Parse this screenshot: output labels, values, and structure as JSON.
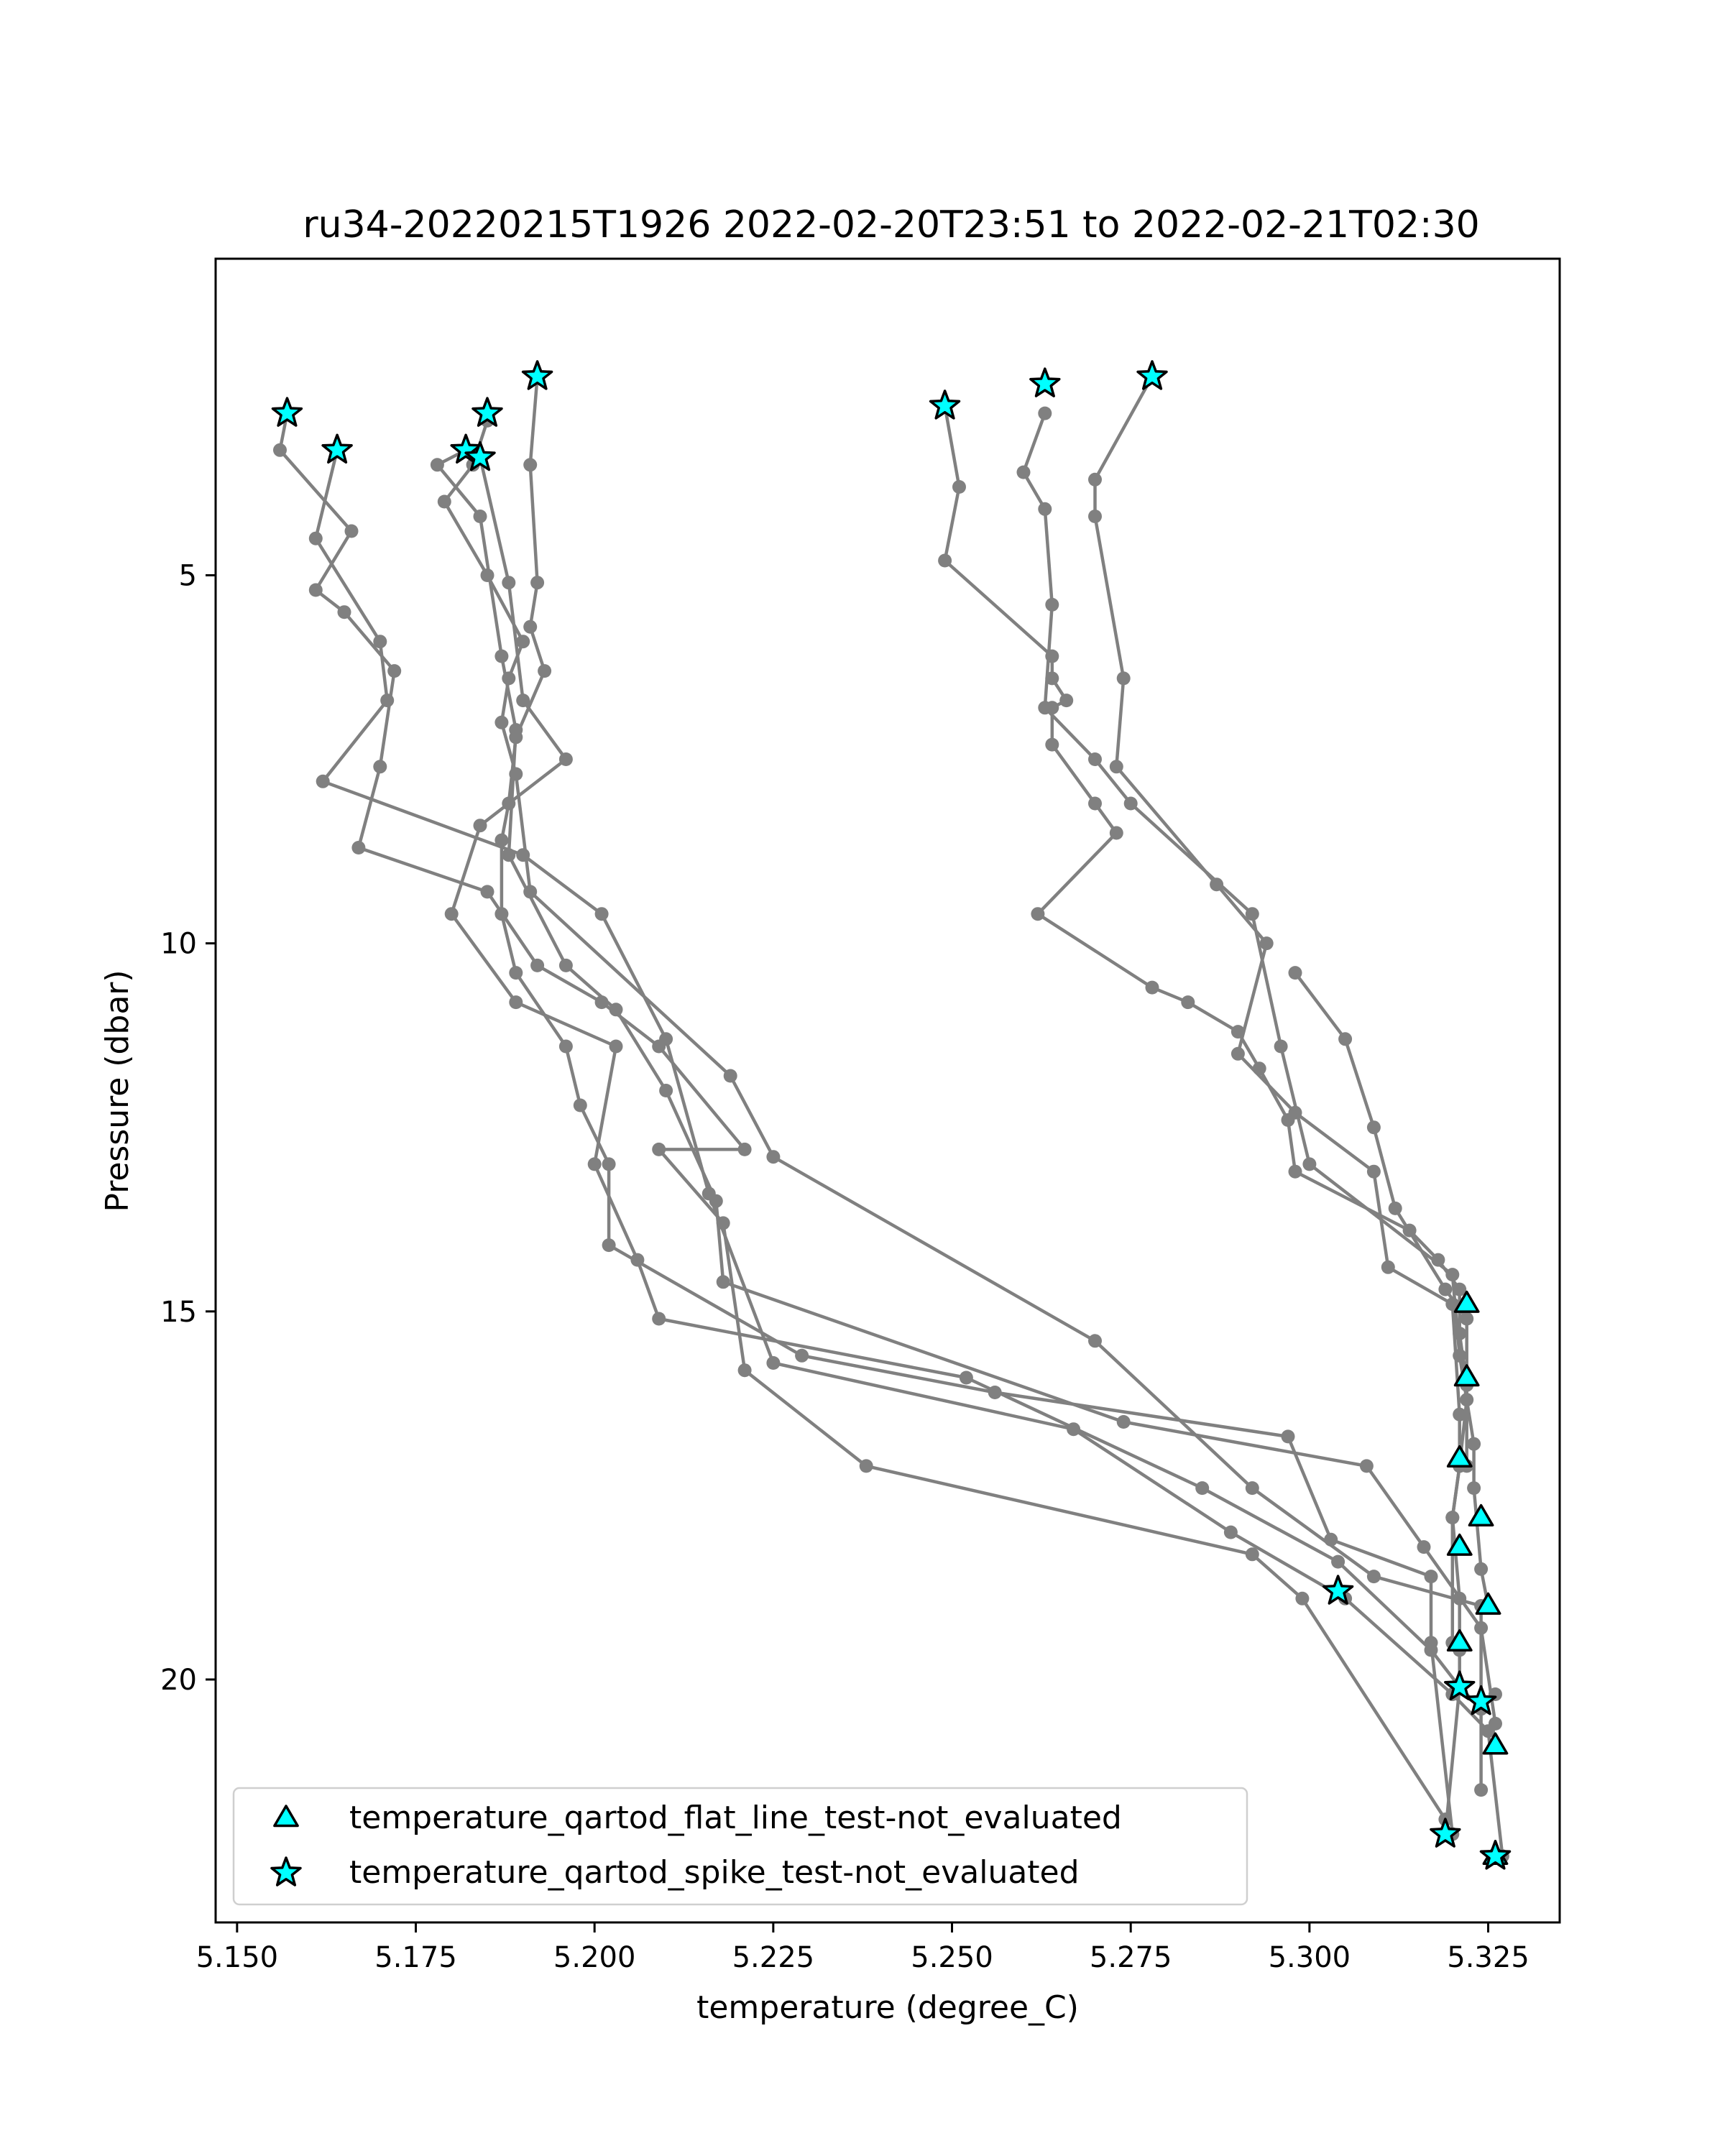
{
  "chart_data": {
    "type": "line",
    "title": "ru34-20220215T1926 2022-02-20T23:51 to 2022-02-21T02:30",
    "xlabel": "temperature (degree_C)",
    "ylabel": "Pressure (dbar)",
    "xlim": [
      5.147,
      5.335
    ],
    "ylim": [
      23.3,
      0.7
    ],
    "y_inverted": true,
    "grid": false,
    "xticks": [
      5.15,
      5.175,
      5.2,
      5.225,
      5.25,
      5.275,
      5.3,
      5.325
    ],
    "xtick_labels": [
      "5.150",
      "5.175",
      "5.200",
      "5.225",
      "5.250",
      "5.275",
      "5.300",
      "5.325"
    ],
    "yticks": [
      5,
      10,
      15,
      20
    ],
    "ytick_labels": [
      "5",
      "10",
      "15",
      "20"
    ],
    "line_color": "#808080",
    "marker_color": "#00ffff",
    "marker_edge_color": "#000000",
    "legend": {
      "location": "lower-left",
      "entries": [
        {
          "label": "temperature_qartod_flat_line_test-not_evaluated",
          "marker": "triangle"
        },
        {
          "label": "temperature_qartod_spike_test-not_evaluated",
          "marker": "star"
        }
      ]
    },
    "series": [
      {
        "x": [
          5.157,
          5.156,
          5.166,
          5.161,
          5.165,
          5.172,
          5.17,
          5.167,
          5.185,
          5.192,
          5.201,
          5.209,
          5.221,
          5.209,
          5.218,
          5.221,
          5.238,
          5.292,
          5.299,
          5.319
        ],
        "y": [
          2.8,
          3.3,
          4.4,
          5.2,
          5.5,
          6.3,
          7.6,
          8.7,
          9.3,
          10.3,
          10.8,
          11.4,
          12.8,
          12.8,
          13.8,
          15.8,
          17.1,
          18.3,
          18.9,
          21.9
        ]
      },
      {
        "x": [
          5.164,
          5.161,
          5.17,
          5.171,
          5.162,
          5.19,
          5.201,
          5.21,
          5.216,
          5.225,
          5.267,
          5.289,
          5.305,
          5.32,
          5.325,
          5.327
        ],
        "y": [
          3.3,
          4.5,
          5.9,
          6.7,
          7.8,
          8.8,
          9.6,
          11.3,
          13.4,
          15.7,
          16.6,
          18.0,
          18.9,
          20.2,
          20.7,
          22.4
        ]
      },
      {
        "x": [
          5.185,
          5.183,
          5.179,
          5.185,
          5.19,
          5.188,
          5.187,
          5.189,
          5.191,
          5.219,
          5.225,
          5.27,
          5.292,
          5.309,
          5.324,
          5.324
        ],
        "y": [
          2.9,
          3.5,
          4.0,
          5.0,
          5.9,
          6.4,
          7.0,
          7.7,
          9.3,
          11.8,
          12.9,
          15.4,
          17.4,
          18.6,
          19.0,
          21.5
        ]
      },
      {
        "x": [
          5.182,
          5.178,
          5.184,
          5.187,
          5.189,
          5.188,
          5.196,
          5.203,
          5.21,
          5.217,
          5.218,
          5.274,
          5.308,
          5.316,
          5.324,
          5.326
        ],
        "y": [
          3.3,
          3.5,
          4.2,
          6.1,
          7.1,
          8.8,
          10.3,
          10.9,
          12.0,
          13.5,
          14.6,
          16.5,
          17.1,
          18.2,
          19.3,
          20.6
        ]
      },
      {
        "x": [
          5.184,
          5.188,
          5.19,
          5.196,
          5.184,
          5.18,
          5.189,
          5.203,
          5.2,
          5.206,
          5.209,
          5.252,
          5.285,
          5.304,
          5.317,
          5.321,
          5.324,
          5.326,
          5.324
        ],
        "y": [
          3.4,
          5.1,
          6.7,
          7.5,
          8.4,
          9.6,
          10.8,
          11.4,
          13.0,
          14.3,
          15.1,
          15.9,
          17.4,
          18.4,
          19.6,
          20.1,
          20.4,
          20.2,
          20.3
        ]
      },
      {
        "x": [
          5.192,
          5.191,
          5.192,
          5.191,
          5.193,
          5.189,
          5.188,
          5.187,
          5.187,
          5.189,
          5.196,
          5.198,
          5.202,
          5.202,
          5.229,
          5.256,
          5.297,
          5.303,
          5.317,
          5.317,
          5.32
        ],
        "y": [
          2.3,
          3.5,
          5.1,
          5.7,
          6.3,
          7.2,
          8.1,
          8.6,
          9.6,
          10.4,
          11.4,
          12.2,
          13.0,
          14.1,
          15.6,
          16.1,
          16.7,
          18.1,
          18.6,
          19.5,
          22.1
        ]
      },
      {
        "x": [
          5.249,
          5.251,
          5.249,
          5.264,
          5.264,
          5.266,
          5.264,
          5.264,
          5.27,
          5.273,
          5.262,
          5.278,
          5.283,
          5.29,
          5.293,
          5.297,
          5.298,
          5.314,
          5.318,
          5.321,
          5.321,
          5.322,
          5.322
        ],
        "y": [
          2.7,
          3.8,
          4.8,
          6.1,
          6.4,
          6.7,
          6.8,
          7.3,
          8.1,
          8.5,
          9.6,
          10.6,
          10.8,
          11.2,
          11.7,
          12.4,
          13.1,
          13.9,
          14.3,
          14.7,
          15.3,
          16.0,
          17.1
        ]
      },
      {
        "x": [
          5.263,
          5.26,
          5.263,
          5.264,
          5.263,
          5.27,
          5.275,
          5.292,
          5.296,
          5.3,
          5.32,
          5.321,
          5.323,
          5.323,
          5.324,
          5.325
        ],
        "y": [
          2.8,
          3.6,
          4.1,
          5.4,
          6.8,
          7.5,
          8.1,
          9.6,
          11.4,
          13.0,
          14.5,
          15.6,
          16.8,
          17.4,
          18.5,
          19.0
        ]
      },
      {
        "x": [
          5.278,
          5.27,
          5.27,
          5.274,
          5.273,
          5.287,
          5.294,
          5.29,
          5.298,
          5.309,
          5.311,
          5.32,
          5.321,
          5.321,
          5.32,
          5.32
        ],
        "y": [
          2.3,
          3.7,
          4.2,
          6.4,
          7.6,
          9.2,
          10.0,
          11.5,
          12.3,
          13.1,
          14.4,
          14.9,
          16.4,
          17.1,
          17.8,
          19.5
        ]
      },
      {
        "x": [
          5.298,
          5.305,
          5.309,
          5.312,
          5.319,
          5.322,
          5.322,
          5.321,
          5.32,
          5.321,
          5.321,
          5.321,
          5.319
        ],
        "y": [
          10.4,
          11.3,
          12.5,
          13.6,
          14.7,
          15.1,
          16.2,
          17.1,
          17.8,
          18.9,
          19.6,
          20.1,
          22.1
        ]
      }
    ],
    "flat_line_markers": {
      "x": [
        5.322,
        5.322,
        5.321,
        5.324,
        5.321,
        5.325,
        5.321,
        5.326,
        5.326
      ],
      "y": [
        14.9,
        15.9,
        17.0,
        17.8,
        18.2,
        19.0,
        19.5,
        20.9,
        22.4
      ]
    },
    "spike_markers": {
      "x": [
        5.157,
        5.164,
        5.192,
        5.185,
        5.182,
        5.184,
        5.249,
        5.263,
        5.278,
        5.304,
        5.321,
        5.324,
        5.319,
        5.326
      ],
      "y": [
        2.8,
        3.3,
        2.3,
        2.8,
        3.3,
        3.4,
        2.7,
        2.4,
        2.3,
        18.8,
        20.1,
        20.3,
        22.1,
        22.4
      ]
    }
  }
}
